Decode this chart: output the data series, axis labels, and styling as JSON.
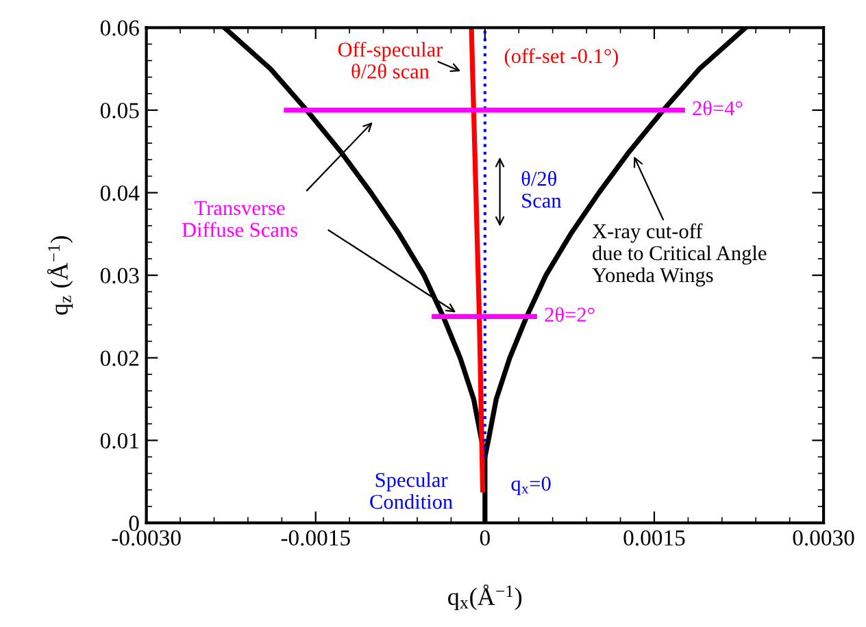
{
  "chart_data": {
    "type": "line",
    "xlabel": "q$_{x}$(Å$^{−1}$)",
    "ylabel": "q$_{z}$ (Å$^{−1}$)",
    "xlim": [
      -0.003,
      0.003
    ],
    "ylim": [
      0,
      0.06
    ],
    "xticks": [
      {
        "value": -0.003,
        "label": "-0.0030"
      },
      {
        "value": -0.0015,
        "label": "-0.0015"
      },
      0,
      {
        "value": 0.0015,
        "label": "0.0015"
      },
      {
        "value": 0.003,
        "label": "0.0030"
      }
    ],
    "yticks": [
      0,
      0.01,
      0.02,
      0.03,
      0.04,
      0.05,
      0.06
    ],
    "grid": false,
    "legend": false,
    "marker": "none",
    "series": [
      {
        "color": "#000000",
        "line_style": "solid",
        "x": [
          -0.00231,
          -0.0019,
          -0.00158,
          -0.00128,
          -0.00101,
          -0.00076,
          -0.00054,
          -0.00037,
          -0.00022,
          -0.0001,
          -3e-05,
          0,
          0
        ],
        "values": [
          0.06,
          0.055,
          0.05,
          0.045,
          0.04,
          0.035,
          0.03,
          0.025,
          0.02,
          0.015,
          0.01,
          0.008,
          0
        ]
      },
      {
        "color": "#000000",
        "line_style": "solid",
        "x": [
          0.00231,
          0.0019,
          0.00158,
          0.00128,
          0.00101,
          0.00076,
          0.00054,
          0.00037,
          0.00022,
          0.0001,
          3e-05,
          0
        ],
        "values": [
          0.06,
          0.055,
          0.05,
          0.045,
          0.04,
          0.035,
          0.03,
          0.025,
          0.02,
          0.015,
          0.01,
          0.008
        ]
      },
      {
        "color": "#ff0000",
        "line_style": "solid",
        "x": [
          -2e-05,
          -5e-05,
          -0.0001,
          -0.00012
        ],
        "values": [
          0.004,
          0.025,
          0.05,
          0.06
        ]
      },
      {
        "color": "#0000ff",
        "line_style": "dotted",
        "x": [
          0,
          0
        ],
        "values": [
          0.008,
          0.06
        ]
      },
      {
        "name": "2θ=4°",
        "color": "#ff00ff",
        "line_style": "solid",
        "x": [
          -0.00176,
          0.00175
        ],
        "values": [
          0.05,
          0.05
        ]
      },
      {
        "name": "2θ=2°",
        "color": "#ff00ff",
        "line_style": "solid",
        "x": [
          -0.00045,
          0.00044
        ],
        "values": [
          0.025,
          0.025
        ]
      }
    ],
    "annotations": [
      "Off-specular\nθ/2θ scan",
      "(off-set -0.1°)",
      "θ/2θ\nScan",
      "Transverse\nDiffuse Scans",
      {
        "text": "X-ray cut-off\ndue to Critical Angle\nYoneda Wings",
        "x": 0.00132,
        "y": 0.0444
      },
      "Specular\nCondition",
      "q$_{x}$=0"
    ]
  }
}
